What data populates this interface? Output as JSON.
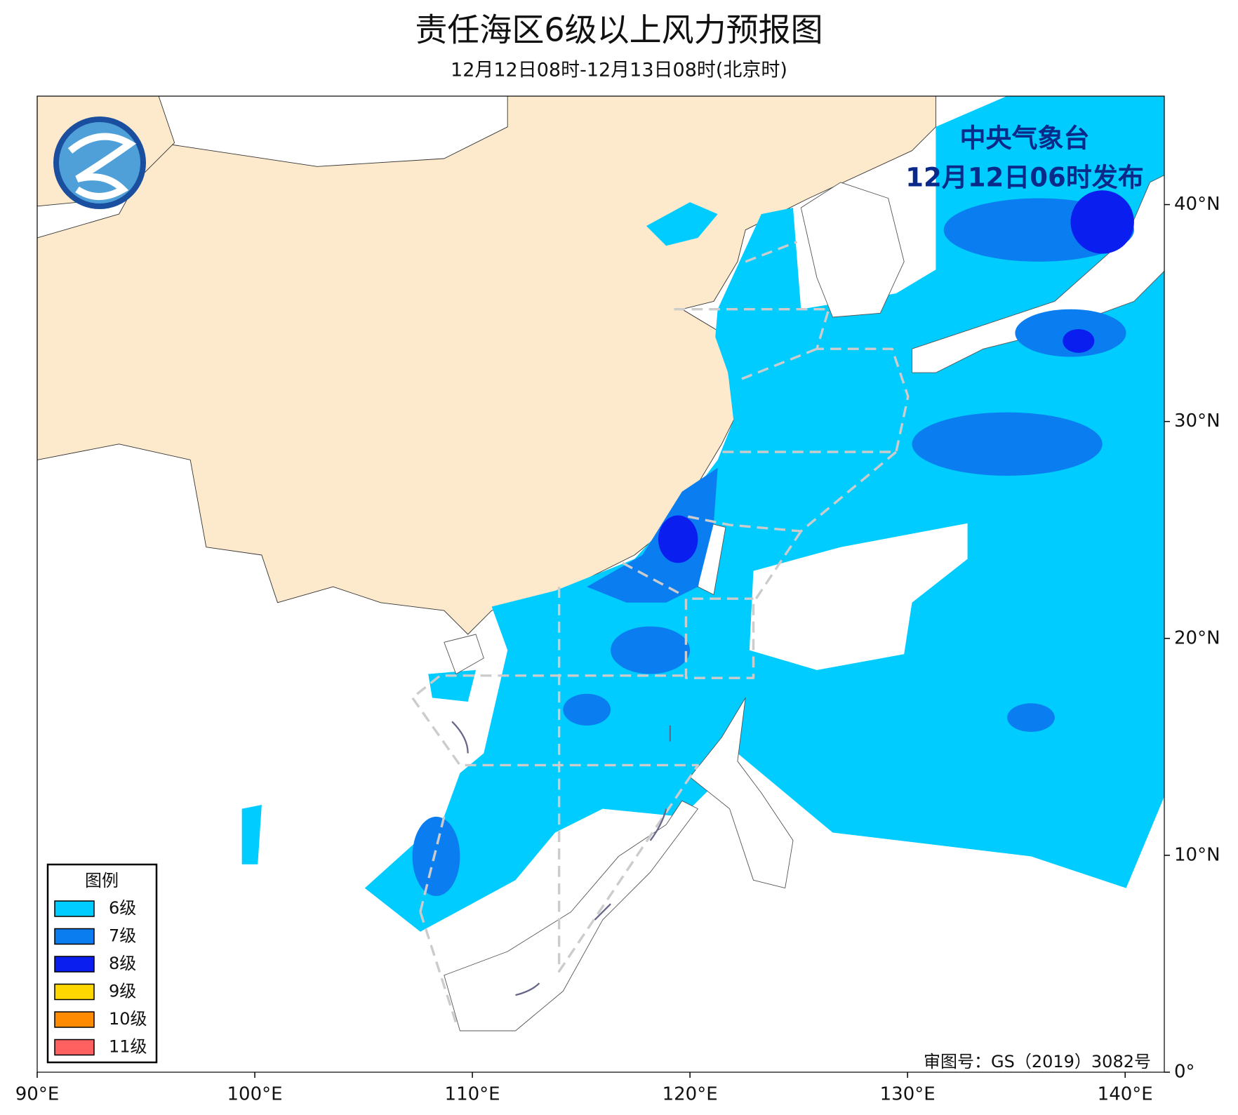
{
  "map": {
    "title": "责任海区6级以上风力预报图",
    "subtitle": "12月12日08时-12月13日08时(北京时)",
    "issuer": [
      "中央气象台",
      "12月12日06时发布"
    ],
    "attribution": "审图号：GS（2019）3082号",
    "xlim": [
      90,
      141.8
    ],
    "ylim": [
      0,
      45
    ],
    "xticks": [
      {
        "value": 90,
        "label": "90°E"
      },
      {
        "value": 100,
        "label": "100°E"
      },
      {
        "value": 110,
        "label": "110°E"
      },
      {
        "value": 120,
        "label": "120°E"
      },
      {
        "value": 130,
        "label": "130°E"
      },
      {
        "value": 140,
        "label": "140°E"
      }
    ],
    "yticks": [
      {
        "value": 0,
        "label": "0°"
      },
      {
        "value": 10,
        "label": "10°N"
      },
      {
        "value": 20,
        "label": "20°N"
      },
      {
        "value": 30,
        "label": "30°N"
      },
      {
        "value": 40,
        "label": "40°N"
      }
    ],
    "legend": {
      "title": "图例",
      "items": [
        {
          "name": "6级",
          "color": "#00ccff"
        },
        {
          "name": "7级",
          "color": "#0a7ef0"
        },
        {
          "name": "8级",
          "color": "#0a1ef0"
        },
        {
          "name": "9级",
          "color": "#ffd700"
        },
        {
          "name": "10级",
          "color": "#ff8c00"
        },
        {
          "name": "11级",
          "color": "#ff6060"
        }
      ]
    }
  }
}
